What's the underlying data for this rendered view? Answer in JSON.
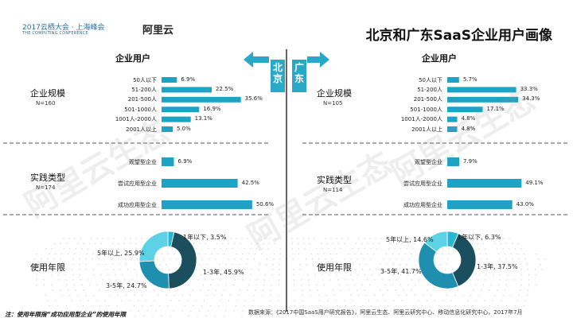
{
  "header": {
    "conf_logo_line1": "2017云栖大会 · 上海峰会",
    "conf_logo_line2": "THE COMPUTING CONFERENCE",
    "aliyun_logo": "阿里云",
    "title": "北京和广东SaaS企业用户画像"
  },
  "regions": {
    "left": "北京",
    "right": "广东"
  },
  "watermark": "阿里云生态",
  "row_labels": {
    "scale": "企业规模",
    "type": "实践类型",
    "years": "使用年限"
  },
  "footer": {
    "note": "注：使用年限指“成功应用型企业”的使用年限",
    "source": "数据来源：《2017中国SaaS用户研究报告》，阿里云生态、阿里云研究中心、移动信息化研究中心，2017年7月"
  },
  "colors": {
    "bar": "#1fa3c4",
    "pie_dark": "#1b4f5e",
    "pie_teal": "#1e8fae",
    "pie_light": "#29b8d4",
    "pie_pale": "#5dd1e6",
    "divider": "#555555",
    "arrow": "#2aa8c8"
  },
  "chart_data": [
    {
      "type": "bar",
      "region": "北京",
      "title": "企业用户",
      "group": "企业规模",
      "n_label": "N=160",
      "categories": [
        "50人以下",
        "51-200人",
        "201-500人",
        "501-1000人",
        "1001人-2000人",
        "2001人以上"
      ],
      "values": [
        6.9,
        22.5,
        35.6,
        16.9,
        13.1,
        5.0
      ],
      "value_labels": [
        "6.9%",
        "22.5%",
        "35.6%",
        "16.9%",
        "13.1%",
        "5.0%"
      ]
    },
    {
      "type": "bar",
      "region": "北京",
      "group": "实践类型",
      "n_label": "N=174",
      "categories": [
        "观望型企业",
        "尝试应用型企业",
        "成功应用型企业"
      ],
      "values": [
        6.9,
        42.5,
        50.6
      ],
      "value_labels": [
        "6.9%",
        "42.5%",
        "50.6%"
      ]
    },
    {
      "type": "pie",
      "region": "北京",
      "group": "使用年限",
      "slices": [
        {
          "label": "1年以下, 3.5%",
          "value": 3.5,
          "color": "#29b8d4"
        },
        {
          "label": "1-3年, 45.9%",
          "value": 45.9,
          "color": "#1b4f5e"
        },
        {
          "label": "3-5年, 24.7%",
          "value": 24.7,
          "color": "#1e8fae"
        },
        {
          "label": "5年以上, 25.9%",
          "value": 25.9,
          "color": "#5dd1e6"
        }
      ]
    },
    {
      "type": "bar",
      "region": "广东",
      "title": "企业用户",
      "group": "企业规模",
      "n_label": "N=105",
      "categories": [
        "50人以下",
        "51-200人",
        "201-500人",
        "501-1000人",
        "1001人-2000人",
        "2001人以上"
      ],
      "values": [
        5.7,
        33.3,
        34.3,
        17.1,
        4.8,
        4.8
      ],
      "value_labels": [
        "5.7%",
        "33.3%",
        "34.3%",
        "17.1%",
        "4.8%",
        "4.8%"
      ]
    },
    {
      "type": "bar",
      "region": "广东",
      "group": "实践类型",
      "n_label": "N=114",
      "categories": [
        "观望型企业",
        "尝试应用型企业",
        "成功应用型企业"
      ],
      "values": [
        7.9,
        49.1,
        43.0
      ],
      "value_labels": [
        "7.9%",
        "49.1%",
        "43.0%"
      ]
    },
    {
      "type": "pie",
      "region": "广东",
      "group": "使用年限",
      "slices": [
        {
          "label": "1年以下, 6.3%",
          "value": 6.3,
          "color": "#29b8d4"
        },
        {
          "label": "1-3年, 37.5%",
          "value": 37.5,
          "color": "#1b4f5e"
        },
        {
          "label": "3-5年, 41.7%",
          "value": 41.7,
          "color": "#1e8fae"
        },
        {
          "label": "5年以上, 14.6%",
          "value": 14.6,
          "color": "#5dd1e6"
        }
      ]
    }
  ]
}
